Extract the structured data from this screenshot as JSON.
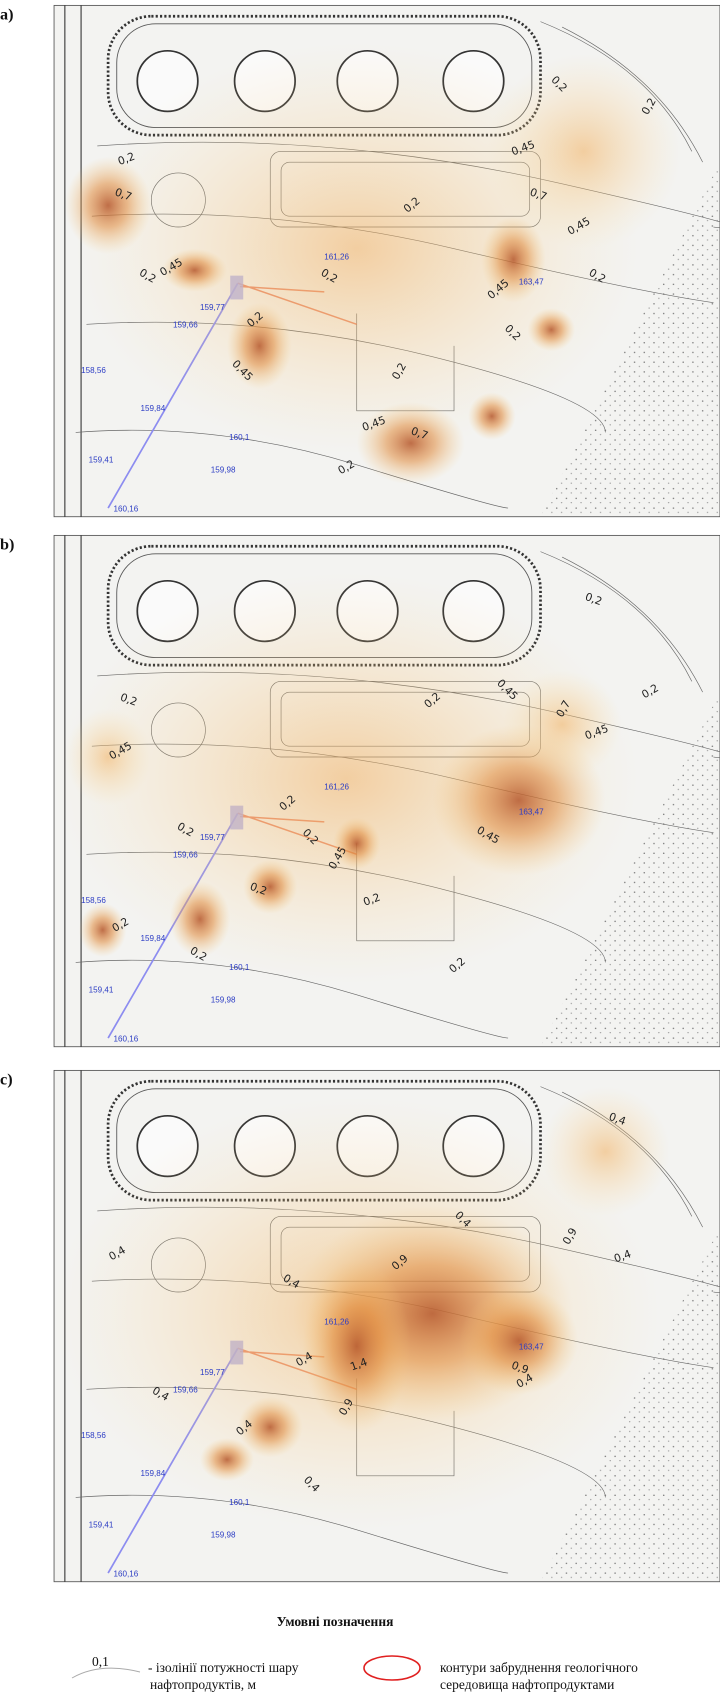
{
  "panels": [
    {
      "label": "a)",
      "contours": [
        "0,2",
        "0,7",
        "0,45",
        "0,2",
        "0,2",
        "0,2",
        "0,2",
        "0,45",
        "0,7",
        "0,45",
        "0,2",
        "0,45",
        "0,2",
        "0,2",
        "0,45",
        "0,7",
        "0,2",
        "0,2",
        "0,2",
        "0,45"
      ]
    },
    {
      "label": "b)",
      "contours": [
        "0,2",
        "0,45",
        "0,2",
        "0,2",
        "0,2",
        "0,45",
        "0,2",
        "0,2",
        "0,2",
        "0,2",
        "0,2",
        "0,45",
        "0,7",
        "0,45",
        "0,2",
        "0,2",
        "0,45",
        "0,2"
      ]
    },
    {
      "label": "c)",
      "contours": [
        "0,4",
        "0,4",
        "0,9",
        "0,4",
        "0,9",
        "0,4",
        "0,4",
        "0,4",
        "0,4",
        "0,4",
        "0,4",
        "0,9",
        "1,4",
        "0,9",
        "0,4"
      ]
    }
  ],
  "map_labels": [
    "160,16",
    "159,41",
    "158,56",
    "159,84",
    "160,1",
    "159,98",
    "159,66",
    "159,77",
    "161,26",
    "163,47"
  ],
  "legend": {
    "title": "Умовні позначення",
    "items": [
      {
        "sample": "0,1",
        "text": [
          "- ізолінії потужності шару",
          "нафтопродуктів, м"
        ]
      },
      {
        "text": [
          "контури забруднення геологічного",
          "середовища нафтопродуктами"
        ]
      }
    ]
  }
}
